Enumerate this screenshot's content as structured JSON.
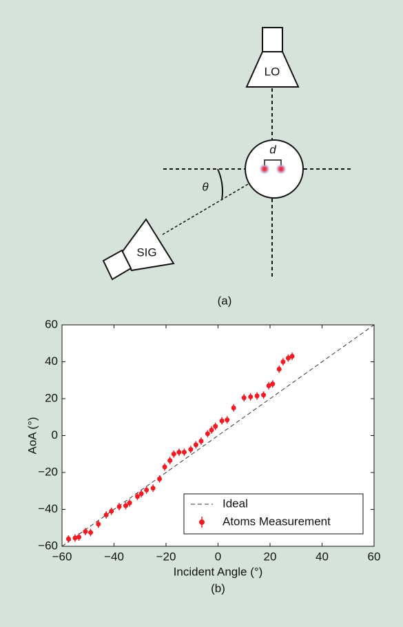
{
  "diagram": {
    "lo_label": "LO",
    "sig_label": "SIG",
    "spacing_label": "d",
    "angle_label": "θ",
    "caption": "(a)"
  },
  "chart_data": {
    "type": "scatter",
    "xlabel": "Incident Angle (°)",
    "ylabel": "AoA (°)",
    "caption": "(b)",
    "xlim": [
      -60,
      60
    ],
    "ylim": [
      -60,
      60
    ],
    "xticks": [
      {
        "value": -60,
        "label": "−60"
      },
      {
        "value": -40,
        "label": "−40"
      },
      {
        "value": -20,
        "label": "−20"
      },
      0,
      20,
      40,
      60
    ],
    "yticks": [
      {
        "value": -60,
        "label": "−60"
      },
      {
        "value": -40,
        "label": "−40"
      },
      {
        "value": -20,
        "label": "−20"
      },
      0,
      20,
      40,
      60
    ],
    "legend": "lower right",
    "series": [
      {
        "name": "Ideal",
        "type": "line",
        "color": "#333333",
        "x": [
          -60,
          60
        ],
        "values": [
          -60,
          60
        ]
      },
      {
        "name": "Atoms Measurement",
        "type": "scatter",
        "color": "#ee1c25",
        "x": [
          -57.5,
          -55,
          -53.5,
          -51,
          -49,
          -46,
          -43,
          -41,
          -38,
          -35.5,
          -34,
          -31,
          -29.5,
          -27.5,
          -25,
          -22.5,
          -20.5,
          -18.5,
          -17,
          -15,
          -13,
          -10.5,
          -8.5,
          -6.5,
          -4,
          -2.5,
          -1,
          1.5,
          3.5,
          6,
          10,
          12.5,
          15,
          17.5,
          19.5,
          21,
          23.5,
          25,
          27,
          28.5
        ],
        "values": [
          -56,
          -55.5,
          -55,
          -52,
          -52.5,
          -48,
          -43,
          -41,
          -38.5,
          -38,
          -36.5,
          -33,
          -31.5,
          -29.5,
          -28.5,
          -23.5,
          -17,
          -13.5,
          -10,
          -9,
          -9,
          -7.5,
          -5,
          -3,
          1,
          3,
          5,
          8,
          8.5,
          15,
          20.5,
          21,
          21.5,
          22,
          27,
          28,
          36,
          40,
          42,
          43
        ],
        "errors": [
          2,
          2,
          2,
          2,
          2,
          2,
          2,
          2,
          2,
          2,
          2,
          2,
          2,
          2,
          2,
          2,
          2,
          2,
          2,
          2,
          2,
          2,
          2,
          2,
          2,
          2,
          2,
          2,
          2,
          2,
          2,
          2,
          2,
          2,
          2,
          2,
          2,
          2,
          2,
          2
        ]
      }
    ]
  }
}
